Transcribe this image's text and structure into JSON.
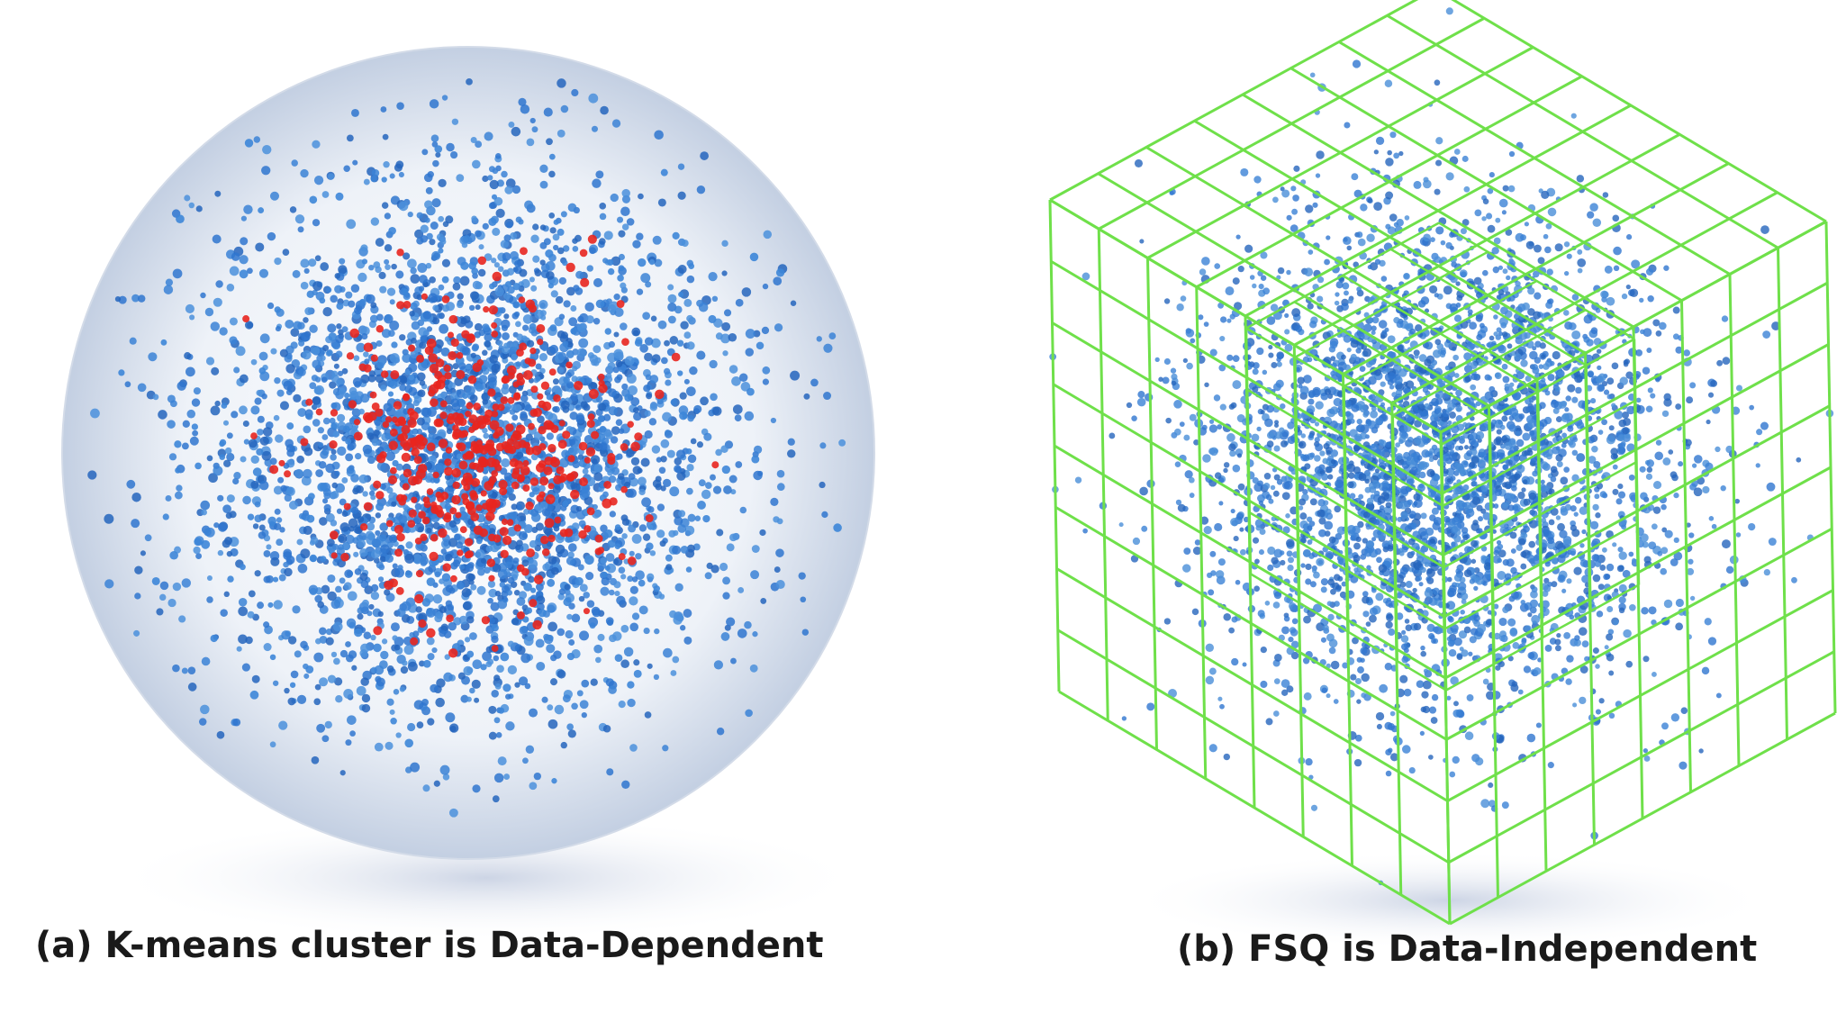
{
  "panels": [
    {
      "caption": "(a) K-means cluster is Data-Dependent"
    },
    {
      "caption": "(b) FSQ is Data-Independent"
    }
  ]
}
